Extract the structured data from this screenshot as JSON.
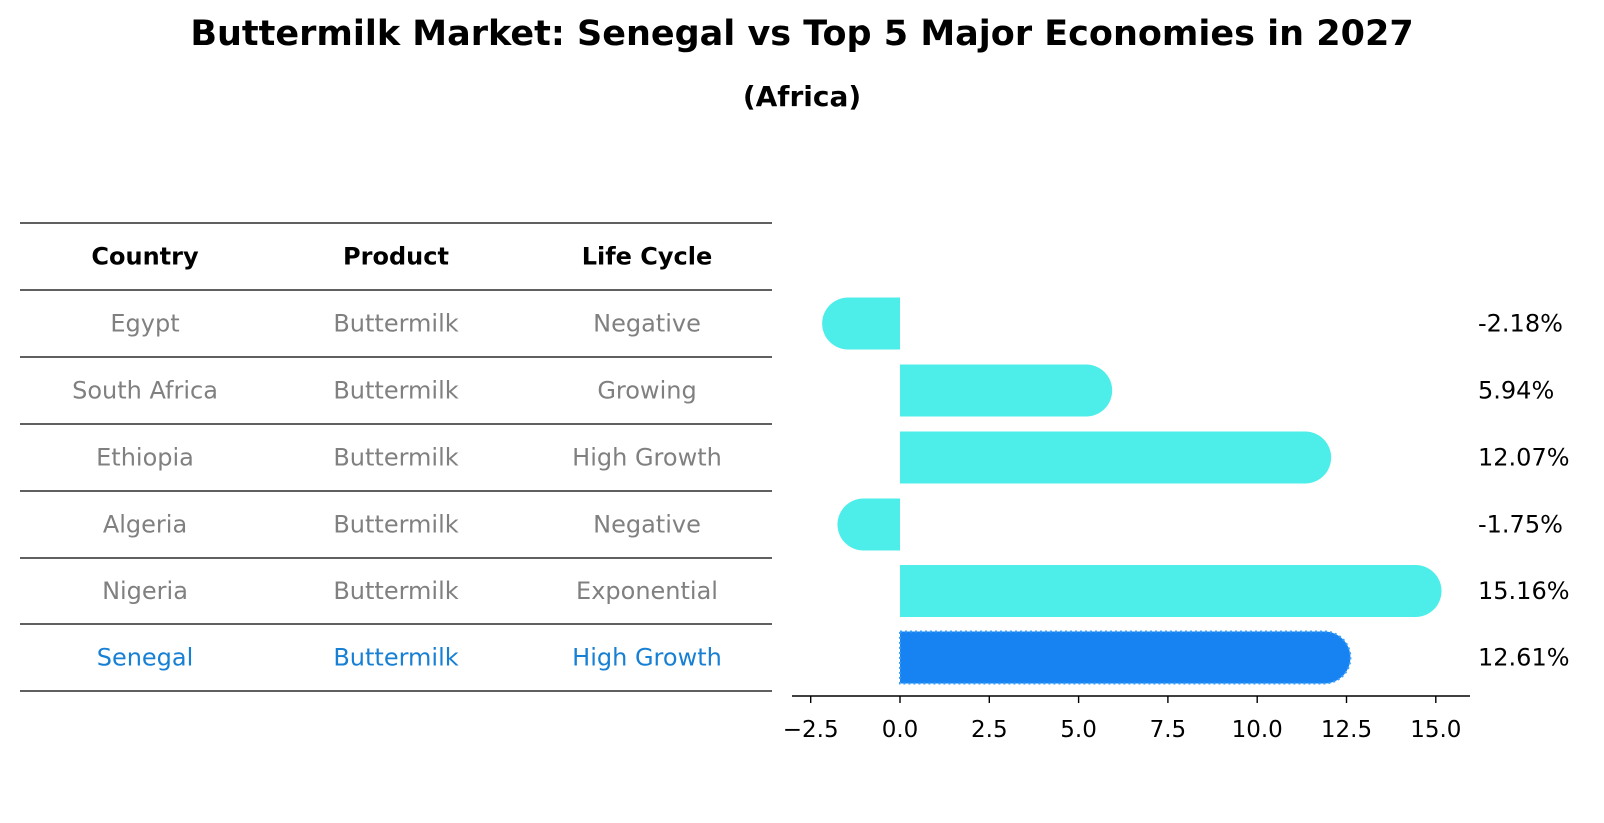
{
  "header": {
    "title": "Buttermilk Market: Senegal vs Top 5 Major Economies in 2027",
    "subtitle": "(Africa)"
  },
  "colors": {
    "bar": "#4deee9",
    "highlight_bar": "#1783f2",
    "highlight_text": "#1780d4",
    "muted_text": "#808080"
  },
  "table": {
    "headers": [
      "Country",
      "Product",
      "Life Cycle"
    ],
    "rows": [
      {
        "country": "Egypt",
        "product": "Buttermilk",
        "life_cycle": "Negative",
        "highlight": false
      },
      {
        "country": "South Africa",
        "product": "Buttermilk",
        "life_cycle": "Growing",
        "highlight": false
      },
      {
        "country": "Ethiopia",
        "product": "Buttermilk",
        "life_cycle": "High Growth",
        "highlight": false
      },
      {
        "country": "Algeria",
        "product": "Buttermilk",
        "life_cycle": "Negative",
        "highlight": false
      },
      {
        "country": "Nigeria",
        "product": "Buttermilk",
        "life_cycle": "Exponential",
        "highlight": false
      },
      {
        "country": "Senegal",
        "product": "Buttermilk",
        "life_cycle": "High Growth",
        "highlight": true
      }
    ]
  },
  "chart_data": {
    "type": "bar",
    "orientation": "horizontal",
    "title": "Buttermilk Market: Senegal vs Top 5 Major Economies in 2027",
    "subtitle": "(Africa)",
    "categories": [
      "Egypt",
      "South Africa",
      "Ethiopia",
      "Algeria",
      "Nigeria",
      "Senegal"
    ],
    "values": [
      -2.18,
      5.94,
      12.07,
      -1.75,
      15.16,
      12.61
    ],
    "value_labels": [
      "-2.18%",
      "5.94%",
      "12.07%",
      "-1.75%",
      "15.16%",
      "12.61%"
    ],
    "highlight_index": 5,
    "xlim": [
      -3.05,
      16.0
    ],
    "xticks": [
      -2.5,
      0.0,
      2.5,
      5.0,
      7.5,
      10.0,
      12.5,
      15.0
    ],
    "xtick_labels": [
      "−2.5",
      "0.0",
      "2.5",
      "5.0",
      "7.5",
      "10.0",
      "12.5",
      "15.0"
    ],
    "xlabel": "",
    "ylabel": "",
    "grid": false,
    "legend": false
  }
}
